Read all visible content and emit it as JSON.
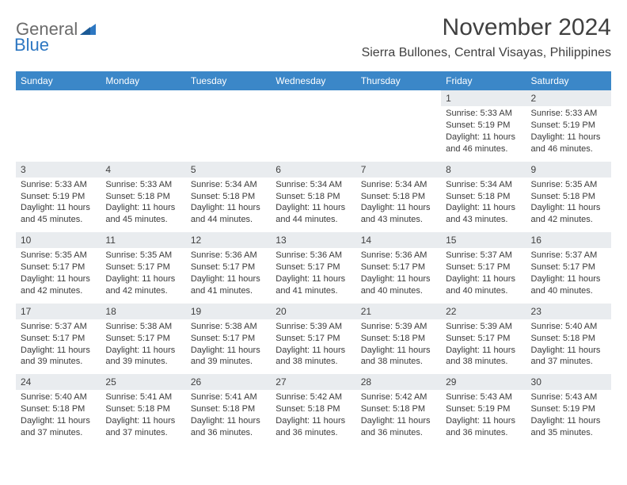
{
  "logo": {
    "word1": "General",
    "word2": "Blue"
  },
  "header": {
    "month_title": "November 2024",
    "location": "Sierra Bullones, Central Visayas, Philippines"
  },
  "colors": {
    "header_bg": "#3b87c8",
    "header_text": "#ffffff",
    "daynum_bg": "#e9ecef",
    "body_text": "#3a3a3a",
    "logo_gray": "#6b6b6b",
    "logo_blue": "#2d77c2"
  },
  "day_names": [
    "Sunday",
    "Monday",
    "Tuesday",
    "Wednesday",
    "Thursday",
    "Friday",
    "Saturday"
  ],
  "weeks": [
    [
      null,
      null,
      null,
      null,
      null,
      {
        "n": "1",
        "sunrise": "Sunrise: 5:33 AM",
        "sunset": "Sunset: 5:19 PM",
        "daylight": "Daylight: 11 hours and 46 minutes."
      },
      {
        "n": "2",
        "sunrise": "Sunrise: 5:33 AM",
        "sunset": "Sunset: 5:19 PM",
        "daylight": "Daylight: 11 hours and 46 minutes."
      }
    ],
    [
      {
        "n": "3",
        "sunrise": "Sunrise: 5:33 AM",
        "sunset": "Sunset: 5:19 PM",
        "daylight": "Daylight: 11 hours and 45 minutes."
      },
      {
        "n": "4",
        "sunrise": "Sunrise: 5:33 AM",
        "sunset": "Sunset: 5:18 PM",
        "daylight": "Daylight: 11 hours and 45 minutes."
      },
      {
        "n": "5",
        "sunrise": "Sunrise: 5:34 AM",
        "sunset": "Sunset: 5:18 PM",
        "daylight": "Daylight: 11 hours and 44 minutes."
      },
      {
        "n": "6",
        "sunrise": "Sunrise: 5:34 AM",
        "sunset": "Sunset: 5:18 PM",
        "daylight": "Daylight: 11 hours and 44 minutes."
      },
      {
        "n": "7",
        "sunrise": "Sunrise: 5:34 AM",
        "sunset": "Sunset: 5:18 PM",
        "daylight": "Daylight: 11 hours and 43 minutes."
      },
      {
        "n": "8",
        "sunrise": "Sunrise: 5:34 AM",
        "sunset": "Sunset: 5:18 PM",
        "daylight": "Daylight: 11 hours and 43 minutes."
      },
      {
        "n": "9",
        "sunrise": "Sunrise: 5:35 AM",
        "sunset": "Sunset: 5:18 PM",
        "daylight": "Daylight: 11 hours and 42 minutes."
      }
    ],
    [
      {
        "n": "10",
        "sunrise": "Sunrise: 5:35 AM",
        "sunset": "Sunset: 5:17 PM",
        "daylight": "Daylight: 11 hours and 42 minutes."
      },
      {
        "n": "11",
        "sunrise": "Sunrise: 5:35 AM",
        "sunset": "Sunset: 5:17 PM",
        "daylight": "Daylight: 11 hours and 42 minutes."
      },
      {
        "n": "12",
        "sunrise": "Sunrise: 5:36 AM",
        "sunset": "Sunset: 5:17 PM",
        "daylight": "Daylight: 11 hours and 41 minutes."
      },
      {
        "n": "13",
        "sunrise": "Sunrise: 5:36 AM",
        "sunset": "Sunset: 5:17 PM",
        "daylight": "Daylight: 11 hours and 41 minutes."
      },
      {
        "n": "14",
        "sunrise": "Sunrise: 5:36 AM",
        "sunset": "Sunset: 5:17 PM",
        "daylight": "Daylight: 11 hours and 40 minutes."
      },
      {
        "n": "15",
        "sunrise": "Sunrise: 5:37 AM",
        "sunset": "Sunset: 5:17 PM",
        "daylight": "Daylight: 11 hours and 40 minutes."
      },
      {
        "n": "16",
        "sunrise": "Sunrise: 5:37 AM",
        "sunset": "Sunset: 5:17 PM",
        "daylight": "Daylight: 11 hours and 40 minutes."
      }
    ],
    [
      {
        "n": "17",
        "sunrise": "Sunrise: 5:37 AM",
        "sunset": "Sunset: 5:17 PM",
        "daylight": "Daylight: 11 hours and 39 minutes."
      },
      {
        "n": "18",
        "sunrise": "Sunrise: 5:38 AM",
        "sunset": "Sunset: 5:17 PM",
        "daylight": "Daylight: 11 hours and 39 minutes."
      },
      {
        "n": "19",
        "sunrise": "Sunrise: 5:38 AM",
        "sunset": "Sunset: 5:17 PM",
        "daylight": "Daylight: 11 hours and 39 minutes."
      },
      {
        "n": "20",
        "sunrise": "Sunrise: 5:39 AM",
        "sunset": "Sunset: 5:17 PM",
        "daylight": "Daylight: 11 hours and 38 minutes."
      },
      {
        "n": "21",
        "sunrise": "Sunrise: 5:39 AM",
        "sunset": "Sunset: 5:18 PM",
        "daylight": "Daylight: 11 hours and 38 minutes."
      },
      {
        "n": "22",
        "sunrise": "Sunrise: 5:39 AM",
        "sunset": "Sunset: 5:17 PM",
        "daylight": "Daylight: 11 hours and 38 minutes."
      },
      {
        "n": "23",
        "sunrise": "Sunrise: 5:40 AM",
        "sunset": "Sunset: 5:18 PM",
        "daylight": "Daylight: 11 hours and 37 minutes."
      }
    ],
    [
      {
        "n": "24",
        "sunrise": "Sunrise: 5:40 AM",
        "sunset": "Sunset: 5:18 PM",
        "daylight": "Daylight: 11 hours and 37 minutes."
      },
      {
        "n": "25",
        "sunrise": "Sunrise: 5:41 AM",
        "sunset": "Sunset: 5:18 PM",
        "daylight": "Daylight: 11 hours and 37 minutes."
      },
      {
        "n": "26",
        "sunrise": "Sunrise: 5:41 AM",
        "sunset": "Sunset: 5:18 PM",
        "daylight": "Daylight: 11 hours and 36 minutes."
      },
      {
        "n": "27",
        "sunrise": "Sunrise: 5:42 AM",
        "sunset": "Sunset: 5:18 PM",
        "daylight": "Daylight: 11 hours and 36 minutes."
      },
      {
        "n": "28",
        "sunrise": "Sunrise: 5:42 AM",
        "sunset": "Sunset: 5:18 PM",
        "daylight": "Daylight: 11 hours and 36 minutes."
      },
      {
        "n": "29",
        "sunrise": "Sunrise: 5:43 AM",
        "sunset": "Sunset: 5:19 PM",
        "daylight": "Daylight: 11 hours and 36 minutes."
      },
      {
        "n": "30",
        "sunrise": "Sunrise: 5:43 AM",
        "sunset": "Sunset: 5:19 PM",
        "daylight": "Daylight: 11 hours and 35 minutes."
      }
    ]
  ]
}
